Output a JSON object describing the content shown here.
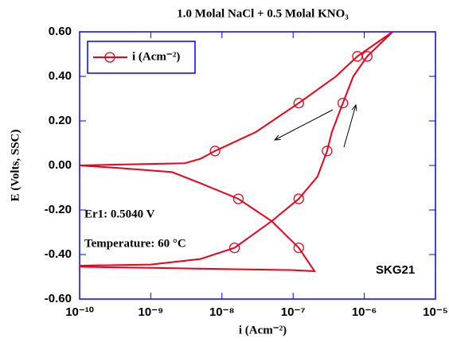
{
  "chart_data": {
    "type": "line",
    "title": "1.0 Molal NaCl + 0.5 Molal KNO₃",
    "x_label": "i (Acm⁻²)",
    "y_label": "E (Volts, SSC)",
    "xscale": "log",
    "xlim": [
      1e-10,
      1e-05
    ],
    "xticks": [
      {
        "value": 1e-10,
        "label": "10⁻¹⁰"
      },
      {
        "value": 1e-09,
        "label": "10⁻⁹"
      },
      {
        "value": 1e-08,
        "label": "10⁻⁸"
      },
      {
        "value": 1e-07,
        "label": "10⁻⁷"
      },
      {
        "value": 1e-06,
        "label": "10⁻⁶"
      },
      {
        "value": 1e-05,
        "label": "10⁻⁵"
      }
    ],
    "ylim": [
      -0.6,
      0.6
    ],
    "yticks": [
      {
        "value": -0.6,
        "label": "-0.60"
      },
      {
        "value": -0.4,
        "label": "-0.40"
      },
      {
        "value": -0.2,
        "label": "-0.20"
      },
      {
        "value": 0,
        "label": "0.00"
      },
      {
        "value": 0.2,
        "label": "0.20"
      },
      {
        "value": 0.4,
        "label": "0.40"
      },
      {
        "value": 0.6,
        "label": "0.60"
      }
    ],
    "grid": false,
    "legend": "upper left",
    "annotations": [
      "Er1: 0.5040 V",
      "Temperature: 60 °C",
      "SKG21"
    ],
    "series": [
      {
        "name": "i (Acm⁻²)",
        "color": "#e8001c",
        "x": [
          1e-10,
          1e-09,
          1e-08,
          1e-07,
          2e-07,
          1.2e-07,
          5e-08,
          1.7e-08,
          5e-09,
          2e-09,
          3e-10,
          1e-10,
          3e-09,
          5e-09,
          8e-09,
          3e-08,
          1.2e-07,
          4e-07,
          8e-07,
          2.5e-06,
          1.1e-06,
          7e-07,
          5e-07,
          3.5e-07,
          3e-07,
          2.2e-07,
          1.2e-07,
          5e-08,
          1.5e-08,
          5e-09,
          1e-09,
          1e-10
        ],
        "values": [
          -0.455,
          -0.46,
          -0.465,
          -0.47,
          -0.475,
          -0.37,
          -0.25,
          -0.15,
          -0.08,
          -0.03,
          -0.01,
          0.0,
          0.01,
          0.03,
          0.065,
          0.15,
          0.28,
          0.4,
          0.49,
          0.6,
          0.49,
          0.4,
          0.28,
          0.15,
          0.065,
          -0.05,
          -0.15,
          -0.25,
          -0.37,
          -0.42,
          -0.445,
          -0.45
        ],
        "markers": {
          "x": [
            8e-09,
            1.2e-07,
            8e-07,
            1.1e-06,
            5e-07,
            3e-07,
            1.2e-07,
            1.7e-08,
            1.2e-07,
            1.5e-08
          ],
          "values": [
            0.065,
            0.28,
            0.49,
            0.49,
            0.28,
            0.065,
            -0.15,
            -0.15,
            -0.37,
            -0.37
          ]
        }
      }
    ]
  }
}
